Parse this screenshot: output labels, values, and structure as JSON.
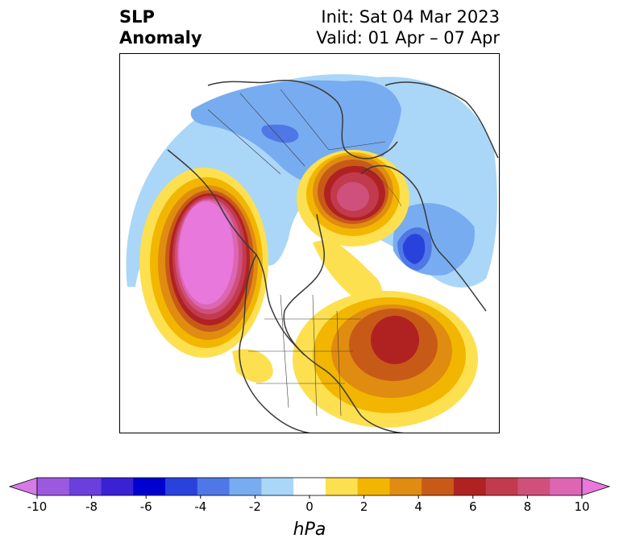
{
  "title": {
    "left_line1": "SLP",
    "left_line2": "Anomaly",
    "right_line1": "Init: Sat 04 Mar 2023",
    "right_line2": "Valid: 01 Apr – 07 Apr"
  },
  "colorbar": {
    "unit": "hPa",
    "ticks": [
      "-10",
      "-8",
      "-6",
      "-4",
      "-2",
      "0",
      "2",
      "4",
      "6",
      "8",
      "10"
    ],
    "colors": [
      "#d67ae8",
      "#9b59e0",
      "#6b3fdc",
      "#3a22d4",
      "#0000d0",
      "#2a42dc",
      "#4f78e6",
      "#78acf0",
      "#aad6f8",
      "#ffffff",
      "#fde050",
      "#f2b600",
      "#e08c10",
      "#c85a18",
      "#b02222",
      "#c23a4e",
      "#d0507c",
      "#dc66b4",
      "#e878dc"
    ]
  }
}
